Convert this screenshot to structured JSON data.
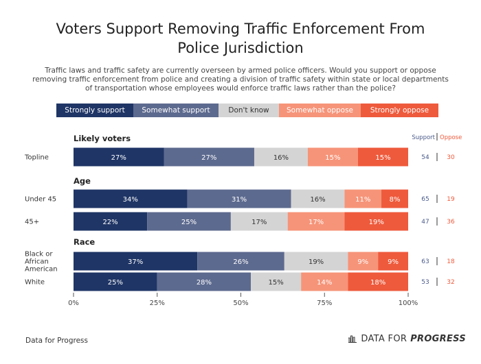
{
  "title_line1": "Voters Support Removing Traffic Enforcement From",
  "title_line2": "Police Jurisdiction",
  "subtitle_lines": [
    "Traffic laws and traffic safety are currently overseen by armed police officers. Would you support or oppose",
    "removing traffic enforcement from police and creating a division of traffic safety within state or local departments",
    "of transportation whose employees would enforce traffic laws rather than the police?"
  ],
  "legend": [
    {
      "label": "Strongly support",
      "color": "#1f3566",
      "text_color": "#ffffff"
    },
    {
      "label": "Somewhat support",
      "color": "#5d6a8f",
      "text_color": "#ffffff"
    },
    {
      "label": "Don't know",
      "color": "#d4d4d4",
      "text_color": "#333333"
    },
    {
      "label": "Somewhat oppose",
      "color": "#f69479",
      "text_color": "#ffffff"
    },
    {
      "label": "Strongly oppose",
      "color": "#ee5a3c",
      "text_color": "#ffffff"
    }
  ],
  "header_support": "Support",
  "header_oppose": "Oppose",
  "support_color": "#4a5a8a",
  "oppose_color": "#ee5a3c",
  "footer_source": "Data for Progress",
  "footer_brand_prefix": "DATA FOR",
  "footer_brand_suffix": "PROGRESS",
  "chart_data": {
    "type": "bar",
    "orientation": "horizontal-stacked",
    "xlim": [
      0,
      100
    ],
    "x_ticks": [
      "0%",
      "25%",
      "50%",
      "75%",
      "100%"
    ],
    "series_names": [
      "Strongly support",
      "Somewhat support",
      "Don't know",
      "Somewhat oppose",
      "Strongly oppose"
    ],
    "groups": [
      {
        "name": "Likely voters",
        "rows": [
          {
            "label": [
              "Topline"
            ],
            "values": [
              27,
              27,
              16,
              15,
              15
            ],
            "support": 54,
            "oppose": 30
          }
        ]
      },
      {
        "name": "Age",
        "rows": [
          {
            "label": [
              "Under 45"
            ],
            "values": [
              34,
              31,
              16,
              11,
              8
            ],
            "support": 65,
            "oppose": 19
          },
          {
            "label": [
              "45+"
            ],
            "values": [
              22,
              25,
              17,
              17,
              19
            ],
            "support": 47,
            "oppose": 36
          }
        ]
      },
      {
        "name": "Race",
        "rows": [
          {
            "label": [
              "Black or",
              "African",
              "American"
            ],
            "values": [
              37,
              26,
              19,
              9,
              9
            ],
            "support": 63,
            "oppose": 18
          },
          {
            "label": [
              "White"
            ],
            "values": [
              25,
              28,
              15,
              14,
              18
            ],
            "support": 53,
            "oppose": 32
          }
        ]
      }
    ]
  }
}
